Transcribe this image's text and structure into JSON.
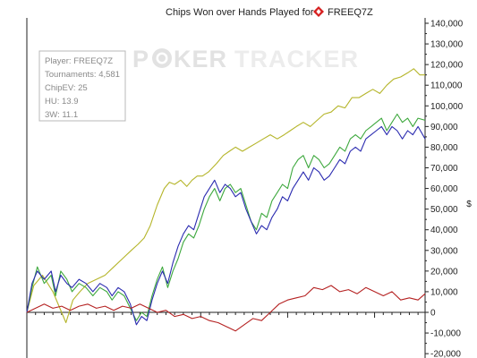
{
  "chart_data": {
    "type": "line",
    "title": "Chips Won over Hands Played for",
    "player_name": "FREEQ7Z",
    "ylabel": "$",
    "xlabel": "",
    "ylim": [
      -25000,
      140000
    ],
    "y_ticks": [
      140000,
      130000,
      120000,
      110000,
      100000,
      90000,
      80000,
      70000,
      60000,
      50000,
      40000,
      30000,
      20000,
      10000,
      0,
      -10000,
      -20000
    ],
    "y_tick_labels": [
      "140,000",
      "130,000",
      "120,000",
      "110,000",
      "100,000",
      "90,000",
      "80,000",
      "70,000",
      "60,000",
      "50,000",
      "40,000",
      "30,000",
      "20,000",
      "10,000",
      "0",
      "-10,000",
      "-20,000"
    ],
    "x_range": [
      0,
      4581
    ],
    "x_major_ticks": [
      0,
      1000,
      2000,
      3000,
      4000
    ],
    "grid": false,
    "watermark": {
      "left": "P",
      "middle": "KER",
      "right": "TRACKER"
    },
    "info_box": {
      "lines": [
        "Player: FREEQ7Z",
        "Tournaments: 4,581",
        "ChipEV: 25",
        "HU: 13.9",
        "3W: 11.1"
      ]
    },
    "series": [
      {
        "color": "#b5b52a",
        "x": [
          0,
          80,
          180,
          300,
          380,
          450,
          530,
          610,
          700,
          800,
          900,
          1000,
          1100,
          1200,
          1280,
          1350,
          1420,
          1500,
          1580,
          1640,
          1700,
          1770,
          1840,
          1900,
          1960,
          2020,
          2090,
          2180,
          2260,
          2330,
          2400,
          2480,
          2560,
          2640,
          2720,
          2800,
          2880,
          2960,
          3030,
          3100,
          3180,
          3260,
          3340,
          3420,
          3500,
          3580,
          3660,
          3740,
          3820,
          3900,
          3980,
          4060,
          4140,
          4220,
          4300,
          4380,
          4450,
          4520,
          4581
        ],
        "values": [
          0,
          13000,
          18000,
          10000,
          2000,
          -5000,
          6000,
          10000,
          14000,
          16000,
          18000,
          22000,
          26000,
          30000,
          33000,
          36000,
          42000,
          52000,
          60000,
          63000,
          62000,
          64000,
          61000,
          64000,
          66000,
          66000,
          68000,
          72000,
          76000,
          78000,
          80000,
          78000,
          80000,
          82000,
          84000,
          86000,
          84000,
          86000,
          88000,
          90000,
          92000,
          90000,
          93000,
          96000,
          97000,
          100000,
          99000,
          104000,
          104000,
          106000,
          108000,
          106000,
          110000,
          113000,
          114000,
          116000,
          118000,
          115000,
          115000
        ]
      },
      {
        "color": "#3da83d",
        "x": [
          0,
          60,
          120,
          200,
          280,
          330,
          390,
          460,
          520,
          600,
          680,
          760,
          840,
          920,
          980,
          1050,
          1120,
          1190,
          1260,
          1320,
          1380,
          1440,
          1500,
          1560,
          1620,
          1680,
          1740,
          1800,
          1860,
          1920,
          1980,
          2040,
          2100,
          2160,
          2220,
          2280,
          2340,
          2400,
          2460,
          2520,
          2580,
          2640,
          2700,
          2760,
          2820,
          2880,
          2940,
          3000,
          3060,
          3120,
          3180,
          3240,
          3300,
          3360,
          3420,
          3480,
          3540,
          3600,
          3660,
          3720,
          3780,
          3840,
          3900,
          3960,
          4020,
          4080,
          4140,
          4200,
          4260,
          4320,
          4380,
          4440,
          4500,
          4581
        ],
        "values": [
          0,
          12000,
          22000,
          14000,
          18000,
          8000,
          20000,
          16000,
          10000,
          14000,
          12000,
          8000,
          12000,
          10000,
          6000,
          10000,
          8000,
          2000,
          -4000,
          0,
          -2000,
          8000,
          16000,
          22000,
          12000,
          20000,
          26000,
          34000,
          38000,
          36000,
          42000,
          50000,
          56000,
          60000,
          54000,
          60000,
          62000,
          58000,
          60000,
          52000,
          44000,
          40000,
          48000,
          46000,
          54000,
          58000,
          62000,
          60000,
          70000,
          74000,
          76000,
          70000,
          76000,
          74000,
          70000,
          72000,
          76000,
          80000,
          78000,
          84000,
          86000,
          84000,
          88000,
          90000,
          92000,
          94000,
          88000,
          92000,
          96000,
          92000,
          94000,
          90000,
          94000,
          93000
        ]
      },
      {
        "color": "#2b2bb0",
        "x": [
          0,
          60,
          120,
          200,
          280,
          330,
          390,
          460,
          520,
          600,
          680,
          760,
          840,
          920,
          980,
          1050,
          1120,
          1190,
          1260,
          1320,
          1380,
          1440,
          1500,
          1560,
          1620,
          1680,
          1740,
          1800,
          1860,
          1920,
          1980,
          2040,
          2100,
          2160,
          2220,
          2280,
          2340,
          2400,
          2460,
          2520,
          2580,
          2640,
          2700,
          2760,
          2820,
          2880,
          2940,
          3000,
          3060,
          3120,
          3180,
          3240,
          3300,
          3360,
          3420,
          3480,
          3540,
          3600,
          3660,
          3720,
          3780,
          3840,
          3900,
          3960,
          4020,
          4080,
          4140,
          4200,
          4260,
          4320,
          4380,
          4440,
          4500,
          4581
        ],
        "values": [
          0,
          14000,
          20000,
          16000,
          20000,
          10000,
          18000,
          14000,
          12000,
          16000,
          14000,
          10000,
          14000,
          12000,
          8000,
          12000,
          10000,
          4000,
          -6000,
          -2000,
          -4000,
          6000,
          14000,
          20000,
          14000,
          24000,
          32000,
          38000,
          42000,
          40000,
          48000,
          56000,
          60000,
          64000,
          58000,
          62000,
          60000,
          56000,
          58000,
          50000,
          44000,
          38000,
          42000,
          40000,
          46000,
          50000,
          56000,
          54000,
          60000,
          64000,
          68000,
          64000,
          70000,
          68000,
          64000,
          66000,
          70000,
          74000,
          72000,
          78000,
          80000,
          78000,
          84000,
          86000,
          88000,
          90000,
          86000,
          90000,
          88000,
          84000,
          88000,
          86000,
          90000,
          84000
        ]
      },
      {
        "color": "#b52222",
        "x": [
          0,
          100,
          200,
          300,
          400,
          500,
          600,
          700,
          800,
          900,
          1000,
          1100,
          1200,
          1300,
          1400,
          1500,
          1600,
          1700,
          1800,
          1900,
          2000,
          2100,
          2200,
          2300,
          2400,
          2500,
          2600,
          2700,
          2800,
          2900,
          3000,
          3100,
          3200,
          3300,
          3400,
          3500,
          3600,
          3700,
          3800,
          3900,
          4000,
          4100,
          4200,
          4300,
          4400,
          4500,
          4581
        ],
        "values": [
          0,
          2000,
          4000,
          2000,
          3000,
          1000,
          3000,
          4000,
          2000,
          3000,
          1000,
          3000,
          2000,
          4000,
          2000,
          0,
          1000,
          -2000,
          -1000,
          -3000,
          -2000,
          -4000,
          -5000,
          -7000,
          -9000,
          -6000,
          -3000,
          -4000,
          0,
          4000,
          6000,
          7000,
          8000,
          12000,
          11000,
          13000,
          10000,
          11000,
          9000,
          12000,
          10000,
          8000,
          10000,
          6000,
          7000,
          6000,
          9000
        ]
      }
    ]
  }
}
